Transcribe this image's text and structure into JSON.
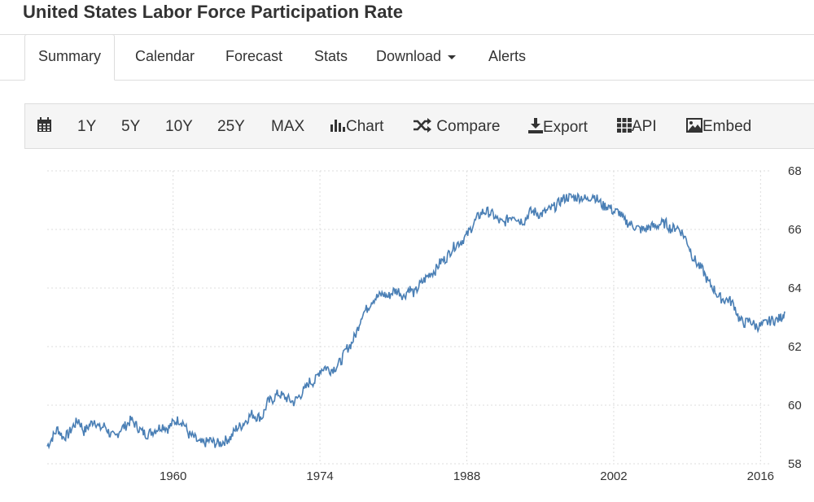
{
  "page": {
    "title": "United States Labor Force Participation Rate"
  },
  "tabs": [
    {
      "label": "Summary",
      "active": true
    },
    {
      "label": "Calendar"
    },
    {
      "label": "Forecast"
    },
    {
      "label": "Stats"
    },
    {
      "label": "Download",
      "has_dropdown": true
    },
    {
      "label": "Alerts"
    }
  ],
  "toolbar": {
    "calendar_icon": "calendar-icon",
    "ranges": [
      "1Y",
      "5Y",
      "10Y",
      "25Y",
      "MAX"
    ],
    "chart_label": "Chart",
    "compare_label": "Compare",
    "export_label": "Export",
    "api_label": "API",
    "embed_label": "Embed",
    "icons": {
      "chart": "bar-chart-icon",
      "compare": "shuffle-icon",
      "export": "download-icon",
      "api": "grid-icon",
      "embed": "image-icon"
    }
  },
  "colors": {
    "line": "#4a7fb5",
    "grid": "#dddddd",
    "toolbar_bg": "#f5f5f5"
  },
  "chart_data": {
    "type": "line",
    "title": "",
    "xlabel": "",
    "ylabel": "",
    "ylim": [
      58,
      68
    ],
    "xlim": [
      1948,
      2018.3
    ],
    "y_axis_position": "right",
    "grid": "horizontal dashed",
    "yticks": [
      58,
      60,
      62,
      64,
      66,
      68
    ],
    "xticks": [
      1960,
      1974,
      1988,
      2002,
      2016
    ],
    "series": [
      {
        "points": [
          [
            1948.0,
            58.6
          ],
          [
            1948.5,
            58.9
          ],
          [
            1949.0,
            59.2
          ],
          [
            1949.5,
            58.9
          ],
          [
            1950.0,
            59.0
          ],
          [
            1950.5,
            59.3
          ],
          [
            1951.0,
            59.5
          ],
          [
            1951.5,
            59.1
          ],
          [
            1952.0,
            59.3
          ],
          [
            1952.5,
            59.5
          ],
          [
            1953.0,
            59.2
          ],
          [
            1953.5,
            59.3
          ],
          [
            1954.0,
            59.0
          ],
          [
            1954.5,
            58.9
          ],
          [
            1955.0,
            59.2
          ],
          [
            1955.5,
            59.3
          ],
          [
            1956.0,
            59.5
          ],
          [
            1956.5,
            59.3
          ],
          [
            1957.0,
            59.1
          ],
          [
            1957.5,
            59.0
          ],
          [
            1958.0,
            59.1
          ],
          [
            1958.5,
            59.2
          ],
          [
            1959.0,
            59.3
          ],
          [
            1959.5,
            59.2
          ],
          [
            1960.0,
            59.4
          ],
          [
            1960.5,
            59.5
          ],
          [
            1961.0,
            59.4
          ],
          [
            1961.5,
            59.0
          ],
          [
            1962.0,
            58.9
          ],
          [
            1962.5,
            58.7
          ],
          [
            1963.0,
            58.7
          ],
          [
            1963.5,
            58.8
          ],
          [
            1964.0,
            58.7
          ],
          [
            1964.5,
            58.7
          ],
          [
            1965.0,
            58.8
          ],
          [
            1965.5,
            58.9
          ],
          [
            1966.0,
            59.2
          ],
          [
            1966.5,
            59.3
          ],
          [
            1967.0,
            59.5
          ],
          [
            1967.5,
            59.7
          ],
          [
            1968.0,
            59.6
          ],
          [
            1968.5,
            59.6
          ],
          [
            1969.0,
            60.1
          ],
          [
            1969.5,
            60.2
          ],
          [
            1970.0,
            60.4
          ],
          [
            1970.5,
            60.3
          ],
          [
            1971.0,
            60.2
          ],
          [
            1971.5,
            60.1
          ],
          [
            1972.0,
            60.3
          ],
          [
            1972.5,
            60.5
          ],
          [
            1973.0,
            60.8
          ],
          [
            1973.5,
            60.8
          ],
          [
            1974.0,
            61.2
          ],
          [
            1974.5,
            61.3
          ],
          [
            1975.0,
            61.2
          ],
          [
            1975.5,
            61.3
          ],
          [
            1976.0,
            61.5
          ],
          [
            1976.5,
            61.9
          ],
          [
            1977.0,
            62.1
          ],
          [
            1977.5,
            62.5
          ],
          [
            1978.0,
            63.1
          ],
          [
            1978.5,
            63.3
          ],
          [
            1979.0,
            63.6
          ],
          [
            1979.5,
            63.7
          ],
          [
            1980.0,
            63.8
          ],
          [
            1980.5,
            63.7
          ],
          [
            1981.0,
            63.9
          ],
          [
            1981.5,
            63.9
          ],
          [
            1982.0,
            63.7
          ],
          [
            1982.5,
            64.0
          ],
          [
            1983.0,
            63.8
          ],
          [
            1983.5,
            64.1
          ],
          [
            1984.0,
            64.3
          ],
          [
            1984.5,
            64.5
          ],
          [
            1985.0,
            64.6
          ],
          [
            1985.5,
            64.9
          ],
          [
            1986.0,
            65.0
          ],
          [
            1986.5,
            65.3
          ],
          [
            1987.0,
            65.5
          ],
          [
            1987.5,
            65.6
          ],
          [
            1988.0,
            65.8
          ],
          [
            1988.5,
            66.1
          ],
          [
            1989.0,
            66.4
          ],
          [
            1989.5,
            66.6
          ],
          [
            1990.0,
            66.6
          ],
          [
            1990.5,
            66.5
          ],
          [
            1991.0,
            66.3
          ],
          [
            1991.5,
            66.2
          ],
          [
            1992.0,
            66.4
          ],
          [
            1992.5,
            66.5
          ],
          [
            1993.0,
            66.3
          ],
          [
            1993.5,
            66.3
          ],
          [
            1994.0,
            66.6
          ],
          [
            1994.5,
            66.6
          ],
          [
            1995.0,
            66.5
          ],
          [
            1995.5,
            66.6
          ],
          [
            1996.0,
            66.7
          ],
          [
            1996.5,
            66.8
          ],
          [
            1997.0,
            67.0
          ],
          [
            1997.5,
            67.1
          ],
          [
            1998.0,
            67.1
          ],
          [
            1998.5,
            67.1
          ],
          [
            1999.0,
            67.1
          ],
          [
            1999.5,
            67.0
          ],
          [
            2000.0,
            67.2
          ],
          [
            2000.5,
            67.0
          ],
          [
            2001.0,
            66.8
          ],
          [
            2001.5,
            66.8
          ],
          [
            2002.0,
            66.6
          ],
          [
            2002.5,
            66.6
          ],
          [
            2003.0,
            66.3
          ],
          [
            2003.5,
            66.2
          ],
          [
            2004.0,
            66.1
          ],
          [
            2004.5,
            66.0
          ],
          [
            2005.0,
            66.0
          ],
          [
            2005.5,
            66.1
          ],
          [
            2006.0,
            66.1
          ],
          [
            2006.5,
            66.2
          ],
          [
            2007.0,
            66.2
          ],
          [
            2007.5,
            66.0
          ],
          [
            2008.0,
            66.1
          ],
          [
            2008.5,
            65.9
          ],
          [
            2009.0,
            65.6
          ],
          [
            2009.5,
            65.1
          ],
          [
            2010.0,
            64.8
          ],
          [
            2010.5,
            64.6
          ],
          [
            2011.0,
            64.2
          ],
          [
            2011.5,
            64.0
          ],
          [
            2012.0,
            63.7
          ],
          [
            2012.5,
            63.6
          ],
          [
            2013.0,
            63.6
          ],
          [
            2013.5,
            63.4
          ],
          [
            2014.0,
            62.9
          ],
          [
            2014.5,
            62.8
          ],
          [
            2015.0,
            62.9
          ],
          [
            2015.5,
            62.7
          ],
          [
            2016.0,
            62.7
          ],
          [
            2016.5,
            62.8
          ],
          [
            2017.0,
            62.9
          ],
          [
            2017.5,
            62.9
          ],
          [
            2018.0,
            63.0
          ],
          [
            2018.3,
            63.2
          ]
        ]
      }
    ]
  }
}
